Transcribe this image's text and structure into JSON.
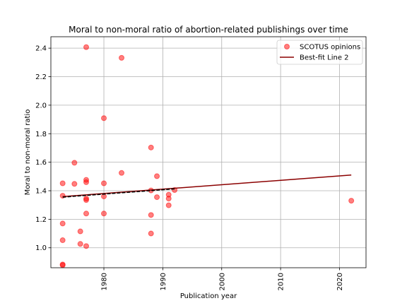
{
  "chart_data": {
    "type": "scatter",
    "title": "Moral to non-moral ratio of abortion-related publishings over time",
    "xlabel": "Publication year",
    "ylabel": "Moral to non-moral ratio",
    "xlim": [
      1971.0,
      2024.5
    ],
    "ylim": [
      0.86,
      2.48
    ],
    "x_ticks": [
      1980,
      1990,
      2000,
      2010,
      2020
    ],
    "y_ticks": [
      1.0,
      1.2,
      1.4,
      1.6,
      1.8,
      2.0,
      2.2,
      2.4
    ],
    "x_ticks_rotated": true,
    "grid": true,
    "legend_position": "top-right",
    "series": [
      {
        "name": "SCOTUS opinions",
        "kind": "scatter",
        "color": "#ff0000",
        "points": [
          {
            "x": 1973,
            "y": 1.452
          },
          {
            "x": 1973,
            "y": 1.365
          },
          {
            "x": 1973,
            "y": 1.17
          },
          {
            "x": 1973,
            "y": 1.053
          },
          {
            "x": 1973,
            "y": 0.883
          },
          {
            "x": 1973,
            "y": 0.878
          },
          {
            "x": 1975,
            "y": 1.596
          },
          {
            "x": 1975,
            "y": 1.448
          },
          {
            "x": 1976,
            "y": 1.115
          },
          {
            "x": 1976,
            "y": 1.027
          },
          {
            "x": 1977,
            "y": 2.407
          },
          {
            "x": 1977,
            "y": 1.476
          },
          {
            "x": 1977,
            "y": 1.46
          },
          {
            "x": 1977,
            "y": 1.345
          },
          {
            "x": 1977,
            "y": 1.335
          },
          {
            "x": 1977,
            "y": 1.24
          },
          {
            "x": 1977,
            "y": 1.012
          },
          {
            "x": 1980,
            "y": 1.909
          },
          {
            "x": 1980,
            "y": 1.452
          },
          {
            "x": 1980,
            "y": 1.36
          },
          {
            "x": 1980,
            "y": 1.24
          },
          {
            "x": 1983,
            "y": 2.332
          },
          {
            "x": 1983,
            "y": 1.525
          },
          {
            "x": 1988,
            "y": 1.703
          },
          {
            "x": 1988,
            "y": 1.402
          },
          {
            "x": 1988,
            "y": 1.23
          },
          {
            "x": 1988,
            "y": 1.1
          },
          {
            "x": 1989,
            "y": 1.502
          },
          {
            "x": 1989,
            "y": 1.355
          },
          {
            "x": 1991,
            "y": 1.372
          },
          {
            "x": 1991,
            "y": 1.345
          },
          {
            "x": 1991,
            "y": 1.298
          },
          {
            "x": 1992,
            "y": 1.405
          },
          {
            "x": 2022,
            "y": 1.33
          }
        ]
      },
      {
        "name": "Best-fit Line 2",
        "kind": "line",
        "color": "#8b0000",
        "points": [
          {
            "x": 1973,
            "y": 1.359
          },
          {
            "x": 2022,
            "y": 1.51
          }
        ]
      },
      {
        "name": "",
        "kind": "line",
        "color": "#000000",
        "dashed": true,
        "points": [
          {
            "x": 1973,
            "y": 1.355
          },
          {
            "x": 1992,
            "y": 1.413
          }
        ]
      }
    ]
  }
}
